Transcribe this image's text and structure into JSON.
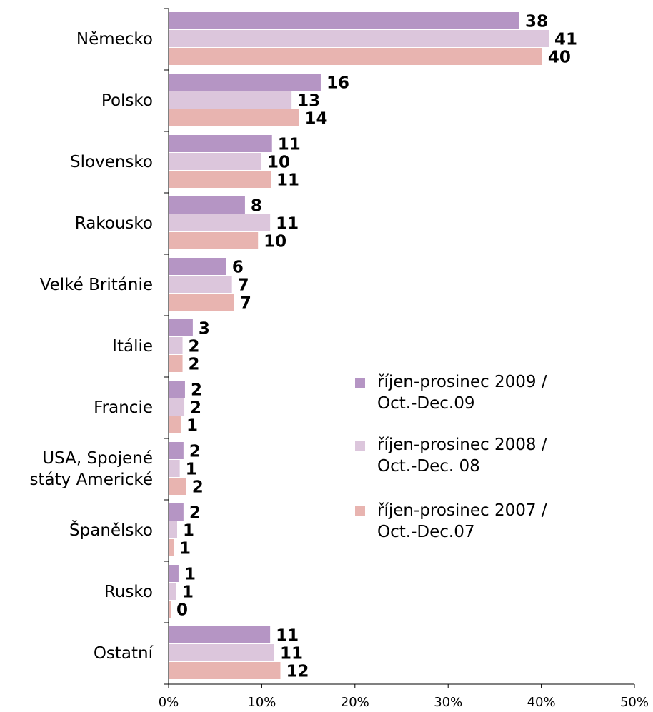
{
  "chart_data": {
    "type": "hbar",
    "categories": [
      "Německo",
      "Polsko",
      "Slovensko",
      "Rakousko",
      "Velké Británie",
      "Itálie",
      "Francie",
      "USA, Spojené státy Americké",
      "Španělsko",
      "Rusko",
      "Ostatní"
    ],
    "series": [
      {
        "name": "říjen-prosinec 2009 / Oct.-Dec.09",
        "color": "#b595c4",
        "values": [
          37.65,
          16.33,
          11.1,
          8.2,
          6.2,
          2.6,
          1.76,
          1.6,
          1.6,
          1.07,
          10.9
        ],
        "value_labels": [
          "38",
          "16",
          "11",
          "8",
          "6",
          "3",
          "2",
          "2",
          "2",
          "1",
          "11"
        ]
      },
      {
        "name": "říjen-prosinec 2008 / Oct.-Dec. 08",
        "color": "#dcc6dc",
        "values": [
          40.8,
          13.2,
          9.97,
          10.9,
          6.8,
          1.5,
          1.69,
          1.2,
          0.92,
          0.84,
          11.35
        ],
        "value_labels": [
          "41",
          "13",
          "10",
          "11",
          "7",
          "2",
          "2",
          "1",
          "1",
          "1",
          "11"
        ]
      },
      {
        "name": "říjen-prosinec 2007 / Oct.-Dec.07",
        "color": "#e8b4b0",
        "values": [
          40.1,
          14.0,
          10.97,
          9.6,
          7.05,
          1.5,
          1.3,
          1.9,
          0.54,
          0.23,
          12.0
        ],
        "value_labels": [
          "40",
          "14",
          "11",
          "10",
          "7",
          "2",
          "1",
          "2",
          "1",
          "0",
          "12"
        ]
      }
    ],
    "xlim": [
      0,
      50
    ],
    "xticks": [
      {
        "value": 0,
        "label": "0%"
      },
      {
        "value": 10,
        "label": "10%"
      },
      {
        "value": 20,
        "label": "20%"
      },
      {
        "value": 30,
        "label": "30%"
      },
      {
        "value": 40,
        "label": "40%"
      },
      {
        "value": 50,
        "label": "50%"
      }
    ]
  }
}
